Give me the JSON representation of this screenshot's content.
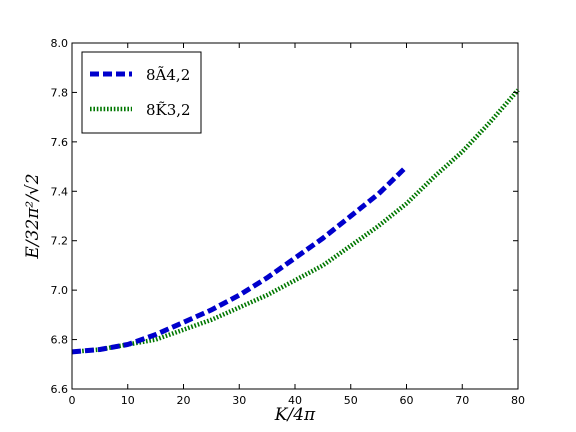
{
  "chart_data": {
    "type": "line",
    "xlabel": "K/4π",
    "ylabel": "E/32π²/√2",
    "xlim": [
      0,
      80
    ],
    "ylim": [
      6.6,
      8.0
    ],
    "x_ticks": [
      0,
      10,
      20,
      30,
      40,
      50,
      60,
      70,
      80
    ],
    "x_tick_labels": [
      "0",
      "10",
      "20",
      "30",
      "40",
      "50",
      "60",
      "70",
      "80"
    ],
    "y_ticks": [
      6.6,
      6.8,
      7.0,
      7.2,
      7.4,
      7.6,
      7.8,
      8.0
    ],
    "y_tick_labels": [
      "6.6",
      "6.8",
      "7.0",
      "7.2",
      "7.4",
      "7.6",
      "7.8",
      "8.0"
    ],
    "grid": false,
    "legend_position": "top-left",
    "series": [
      {
        "name": "8Ã4,2",
        "color": "#0000cc",
        "style": "dashed",
        "x": [
          0,
          5,
          10,
          15,
          20,
          25,
          30,
          35,
          40,
          45,
          50,
          55,
          60
        ],
        "y": [
          6.75,
          6.76,
          6.78,
          6.82,
          6.87,
          6.92,
          6.98,
          7.05,
          7.13,
          7.21,
          7.3,
          7.39,
          7.5
        ]
      },
      {
        "name": "8K̃3,2",
        "color": "#007700",
        "style": "dotted",
        "x": [
          0,
          5,
          10,
          15,
          20,
          25,
          30,
          35,
          40,
          45,
          50,
          55,
          60,
          65,
          70,
          75,
          80
        ],
        "y": [
          6.75,
          6.76,
          6.78,
          6.8,
          6.84,
          6.88,
          6.93,
          6.98,
          7.04,
          7.1,
          7.18,
          7.26,
          7.35,
          7.46,
          7.56,
          7.68,
          7.81
        ]
      }
    ]
  }
}
